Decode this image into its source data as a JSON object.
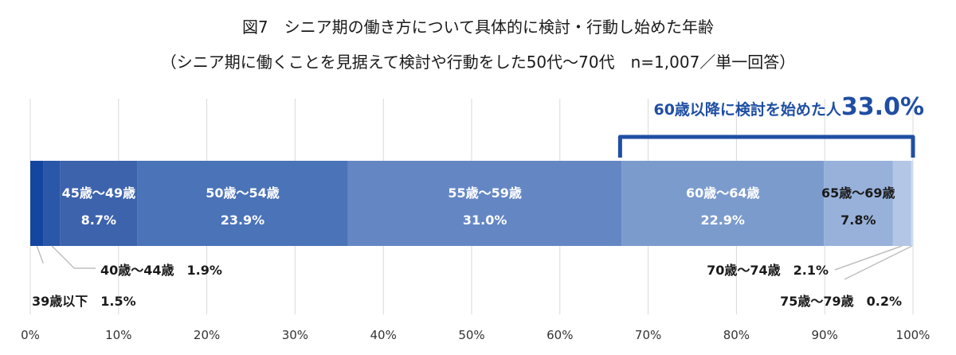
{
  "title": "図7　シニア期の働き方について具体的に検討・行動し始めた年齢",
  "subtitle": "（シニア期に働くことを見据えて検討や行動をした50代～70代　n=1,007／単一回答）",
  "annotation": {
    "text": "60歳以降に検討を始めた人",
    "value": "33.0%",
    "color": "#1f4ea3"
  },
  "chart_data": {
    "type": "bar",
    "orientation": "horizontal-stacked-100",
    "xlim": [
      0,
      100
    ],
    "x_ticks": [
      "0%",
      "10%",
      "20%",
      "30%",
      "40%",
      "50%",
      "60%",
      "70%",
      "80%",
      "90%",
      "100%"
    ],
    "grid": true,
    "categories": [
      "39歳以下",
      "40歳～44歳",
      "45歳～49歳",
      "50歳～54歳",
      "55歳～59歳",
      "60歳～64歳",
      "65歳～69歳",
      "70歳～74歳",
      "75歳～79歳"
    ],
    "values": [
      1.5,
      1.9,
      8.7,
      23.9,
      31.0,
      22.9,
      7.8,
      2.1,
      0.2
    ],
    "labels": [
      "1.5%",
      "1.9%",
      "8.7%",
      "23.9%",
      "31.0%",
      "22.9%",
      "7.8%",
      "2.1%",
      "0.2%"
    ],
    "colors": [
      "#1446a0",
      "#2a57a8",
      "#3d63ad",
      "#4a73b8",
      "#6487c4",
      "#7c9bcd",
      "#97b1da",
      "#b3c6e6",
      "#cfdcf1"
    ]
  }
}
